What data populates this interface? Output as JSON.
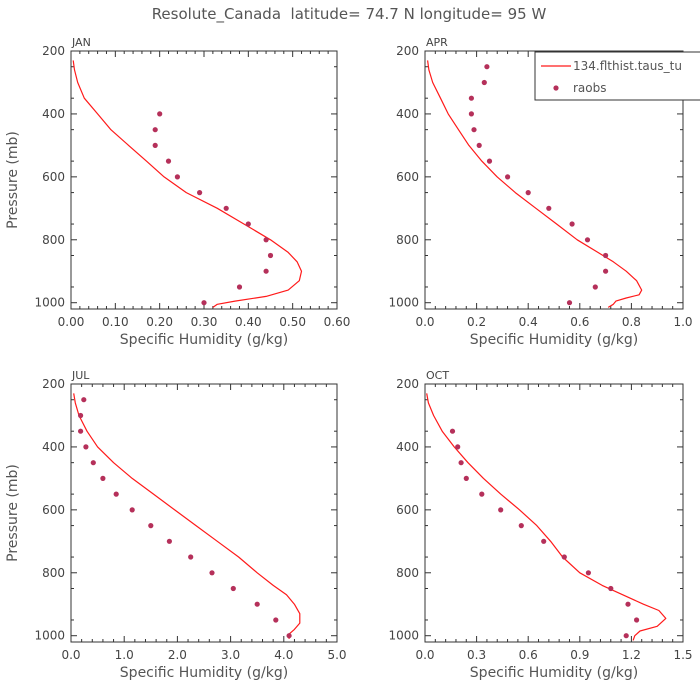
{
  "chart_data": {
    "type": "line",
    "title": "Resolute_Canada  latitude= 74.7 N longitude= 95 W",
    "legend": {
      "placement": "top-right",
      "entries": [
        "134.flthist.taus_tu",
        "raobs"
      ]
    },
    "colors": {
      "model": "#ff1a1a",
      "obs": "#b5305a",
      "axis": "#333333"
    },
    "panels": [
      {
        "label": "JAN",
        "xlabel": "Specific Humidity (g/kg)",
        "ylabel": "Pressure (mb)",
        "xlim": [
          0,
          0.6
        ],
        "ylim": [
          200,
          1020
        ],
        "xticks": [
          "0.00",
          "0.10",
          "0.20",
          "0.30",
          "0.40",
          "0.50",
          "0.60"
        ],
        "yticks": [
          "200",
          "400",
          "600",
          "800",
          "1000"
        ],
        "series": [
          {
            "name": "134.flthist.taus_tu",
            "kind": "line",
            "x": [
              0.005,
              0.008,
              0.015,
              0.03,
              0.06,
              0.09,
              0.13,
              0.17,
              0.21,
              0.26,
              0.33,
              0.39,
              0.45,
              0.49,
              0.51,
              0.52,
              0.515,
              0.49,
              0.44,
              0.37,
              0.33,
              0.32
            ],
            "y": [
              230,
              260,
              300,
              350,
              400,
              450,
              500,
              550,
              600,
              650,
              700,
              750,
              800,
              840,
              870,
              900,
              930,
              960,
              980,
              995,
              1005,
              1015
            ]
          },
          {
            "name": "raobs",
            "kind": "scatter",
            "x": [
              0.2,
              0.19,
              0.19,
              0.22,
              0.24,
              0.29,
              0.35,
              0.4,
              0.44,
              0.45,
              0.44,
              0.38,
              0.3
            ],
            "y": [
              400,
              450,
              500,
              550,
              600,
              650,
              700,
              750,
              800,
              850,
              900,
              950,
              1000
            ]
          }
        ]
      },
      {
        "label": "APR",
        "xlabel": "Specific Humidity (g/kg)",
        "ylabel": "",
        "xlim": [
          0,
          1.0
        ],
        "ylim": [
          200,
          1020
        ],
        "xticks": [
          "0.0",
          "0.2",
          "0.4",
          "0.6",
          "0.8",
          "1.0"
        ],
        "yticks": [
          "200",
          "400",
          "600",
          "800",
          "1000"
        ],
        "series": [
          {
            "name": "134.flthist.taus_tu",
            "kind": "line",
            "x": [
              0.01,
              0.015,
              0.03,
              0.06,
              0.09,
              0.13,
              0.17,
              0.22,
              0.28,
              0.35,
              0.43,
              0.51,
              0.59,
              0.67,
              0.73,
              0.78,
              0.82,
              0.84,
              0.83,
              0.78,
              0.74,
              0.73,
              0.71
            ],
            "y": [
              230,
              260,
              300,
              350,
              400,
              450,
              500,
              550,
              600,
              650,
              700,
              750,
              800,
              840,
              870,
              900,
              930,
              960,
              975,
              985,
              995,
              1005,
              1015
            ]
          },
          {
            "name": "raobs",
            "kind": "scatter",
            "x": [
              0.24,
              0.23,
              0.18,
              0.18,
              0.19,
              0.21,
              0.25,
              0.32,
              0.4,
              0.48,
              0.57,
              0.63,
              0.7,
              0.7,
              0.66,
              0.56
            ],
            "y": [
              250,
              300,
              350,
              400,
              450,
              500,
              550,
              600,
              650,
              700,
              750,
              800,
              850,
              900,
              950,
              1000
            ]
          }
        ]
      },
      {
        "label": "JUL",
        "xlabel": "Specific Humidity (g/kg)",
        "ylabel": "Pressure (mb)",
        "xlim": [
          0,
          5.0
        ],
        "ylim": [
          200,
          1020
        ],
        "xticks": [
          "0.0",
          "1.0",
          "2.0",
          "3.0",
          "4.0",
          "5.0"
        ],
        "yticks": [
          "200",
          "400",
          "600",
          "800",
          "1000"
        ],
        "series": [
          {
            "name": "134.flthist.taus_tu",
            "kind": "line",
            "x": [
              0.05,
              0.08,
              0.15,
              0.3,
              0.5,
              0.8,
              1.15,
              1.55,
              1.95,
              2.35,
              2.75,
              3.15,
              3.5,
              3.8,
              4.05,
              4.2,
              4.3,
              4.3,
              4.2,
              4.1,
              4.1
            ],
            "y": [
              230,
              260,
              300,
              350,
              400,
              450,
              500,
              550,
              600,
              650,
              700,
              750,
              800,
              840,
              870,
              900,
              930,
              960,
              980,
              995,
              1010
            ]
          },
          {
            "name": "raobs",
            "kind": "scatter",
            "x": [
              0.24,
              0.18,
              0.18,
              0.28,
              0.42,
              0.6,
              0.85,
              1.15,
              1.5,
              1.85,
              2.25,
              2.65,
              3.05,
              3.5,
              3.85,
              4.1
            ],
            "y": [
              250,
              300,
              350,
              400,
              450,
              500,
              550,
              600,
              650,
              700,
              750,
              800,
              850,
              900,
              950,
              1000
            ]
          }
        ]
      },
      {
        "label": "OCT",
        "xlabel": "Specific Humidity (g/kg)",
        "ylabel": "",
        "xlim": [
          0,
          1.5
        ],
        "ylim": [
          200,
          1020
        ],
        "xticks": [
          "0.0",
          "0.3",
          "0.6",
          "0.9",
          "1.2",
          "1.5"
        ],
        "yticks": [
          "200",
          "400",
          "600",
          "800",
          "1000"
        ],
        "series": [
          {
            "name": "134.flthist.taus_tu",
            "kind": "line",
            "x": [
              0.01,
              0.02,
              0.05,
              0.1,
              0.17,
              0.25,
              0.34,
              0.44,
              0.55,
              0.65,
              0.73,
              0.8,
              0.9,
              1.03,
              1.15,
              1.27,
              1.36,
              1.4,
              1.35,
              1.25,
              1.22,
              1.21
            ],
            "y": [
              230,
              260,
              300,
              350,
              400,
              450,
              500,
              550,
              600,
              650,
              700,
              750,
              800,
              840,
              870,
              900,
              920,
              945,
              970,
              985,
              1000,
              1015
            ]
          },
          {
            "name": "raobs",
            "kind": "scatter",
            "x": [
              0.16,
              0.19,
              0.21,
              0.24,
              0.33,
              0.44,
              0.56,
              0.69,
              0.81,
              0.95,
              1.08,
              1.18,
              1.23,
              1.17
            ],
            "y": [
              350,
              400,
              450,
              500,
              550,
              600,
              650,
              700,
              750,
              800,
              850,
              900,
              950,
              1000
            ]
          }
        ]
      }
    ]
  }
}
